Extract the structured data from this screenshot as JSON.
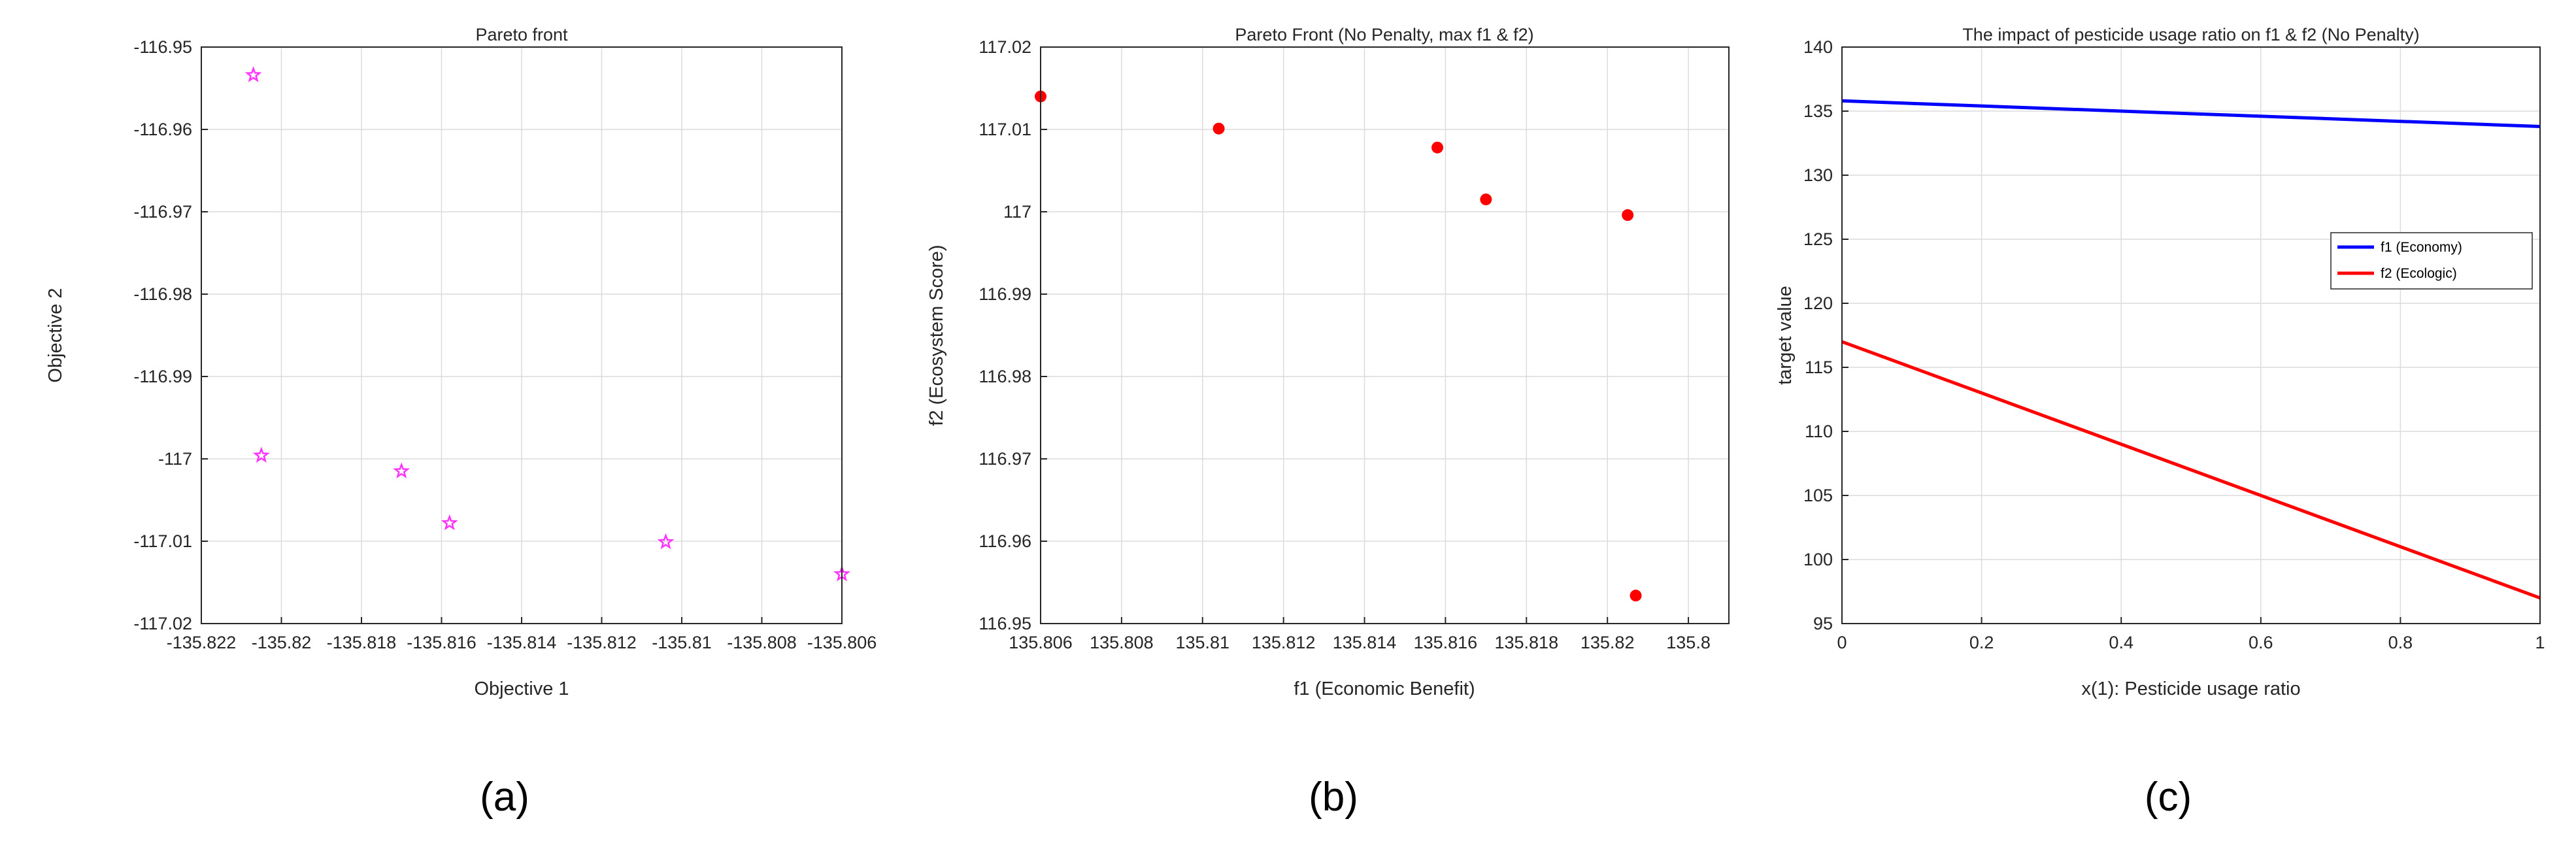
{
  "colors": {
    "pink_star": "#ff33ff",
    "red": "#ff0000",
    "blue": "#0000ff",
    "axis": "#262626",
    "grid": "#dcdcdc"
  },
  "chart_data": [
    {
      "type": "scatter",
      "panel_caption": "(a)",
      "title": "Pareto front",
      "xlabel": "Objective 1",
      "ylabel": "Objective 2",
      "xlim": [
        -135.822,
        -135.806
      ],
      "ylim": [
        -117.02,
        -116.95
      ],
      "xticks": [
        -135.822,
        -135.82,
        -135.818,
        -135.816,
        -135.814,
        -135.812,
        -135.81,
        -135.808,
        -135.806
      ],
      "xtick_labels": [
        "-135.822",
        "-135.82",
        "-135.818",
        "-135.816",
        "-135.814",
        "-135.812",
        "-135.81",
        "-135.808",
        "-135.806"
      ],
      "yticks": [
        -116.95,
        -116.96,
        -116.97,
        -116.98,
        -116.99,
        -117,
        -117.01,
        -117.02
      ],
      "ytick_labels": [
        "-116.95",
        "-116.96",
        "-116.97",
        "-116.98",
        "-116.99",
        "-117",
        "-117.01",
        "-117.02"
      ],
      "grid": true,
      "marker": "star",
      "color": "#ff33ff",
      "x": [
        -135.8207,
        -135.8205,
        -135.817,
        -135.8158,
        -135.8104,
        -135.806
      ],
      "y": [
        -116.9534,
        -116.9996,
        -117.0015,
        -117.0078,
        -117.0101,
        -117.014
      ]
    },
    {
      "type": "scatter",
      "panel_caption": "(b)",
      "title": "Pareto Front (No Penalty, max f1 & f2)",
      "xlabel": "f1 (Economic Benefit)",
      "ylabel": "f2 (Ecosystem Score)",
      "xlim": [
        135.806,
        135.823
      ],
      "ylim": [
        116.95,
        117.02
      ],
      "xticks": [
        135.806,
        135.808,
        135.81,
        135.812,
        135.814,
        135.816,
        135.818,
        135.82,
        135.822
      ],
      "xtick_labels": [
        "135.806",
        "135.808",
        "135.81",
        "135.812",
        "135.814",
        "135.816",
        "135.818",
        "135.82",
        "135.8"
      ],
      "yticks": [
        117.02,
        117.01,
        117,
        116.99,
        116.98,
        116.97,
        116.96,
        116.95
      ],
      "ytick_labels": [
        "117.02",
        "117.01",
        "117",
        "116.99",
        "116.98",
        "116.97",
        "116.96",
        "116.95"
      ],
      "grid": true,
      "marker": "dot",
      "color": "#ff0000",
      "x": [
        135.806,
        135.8104,
        135.8158,
        135.817,
        135.8205,
        135.8207
      ],
      "y": [
        117.014,
        117.0101,
        117.0078,
        117.0015,
        116.9996,
        116.9534
      ]
    },
    {
      "type": "line",
      "panel_caption": "(c)",
      "title": "The impact of pesticide usage ratio on f1 & f2 (No Penalty)",
      "xlabel": "x(1): Pesticide usage ratio",
      "ylabel": "target value",
      "xlim": [
        0,
        1
      ],
      "ylim": [
        95,
        140
      ],
      "xticks": [
        0,
        0.2,
        0.4,
        0.6,
        0.8,
        1
      ],
      "xtick_labels": [
        "0",
        "0.2",
        "0.4",
        "0.6",
        "0.8",
        "1"
      ],
      "yticks": [
        95,
        100,
        105,
        110,
        115,
        120,
        125,
        130,
        135,
        140
      ],
      "ytick_labels": [
        "95",
        "100",
        "105",
        "110",
        "115",
        "120",
        "125",
        "130",
        "135",
        "140"
      ],
      "grid": true,
      "legend": "right",
      "x": [
        0,
        1
      ],
      "series": [
        {
          "name": "f1 (Economy)",
          "color": "#0000ff",
          "values": [
            135.8,
            133.8
          ]
        },
        {
          "name": "f2 (Ecologic)",
          "color": "#ff0000",
          "values": [
            117.0,
            97.0
          ]
        }
      ]
    }
  ]
}
